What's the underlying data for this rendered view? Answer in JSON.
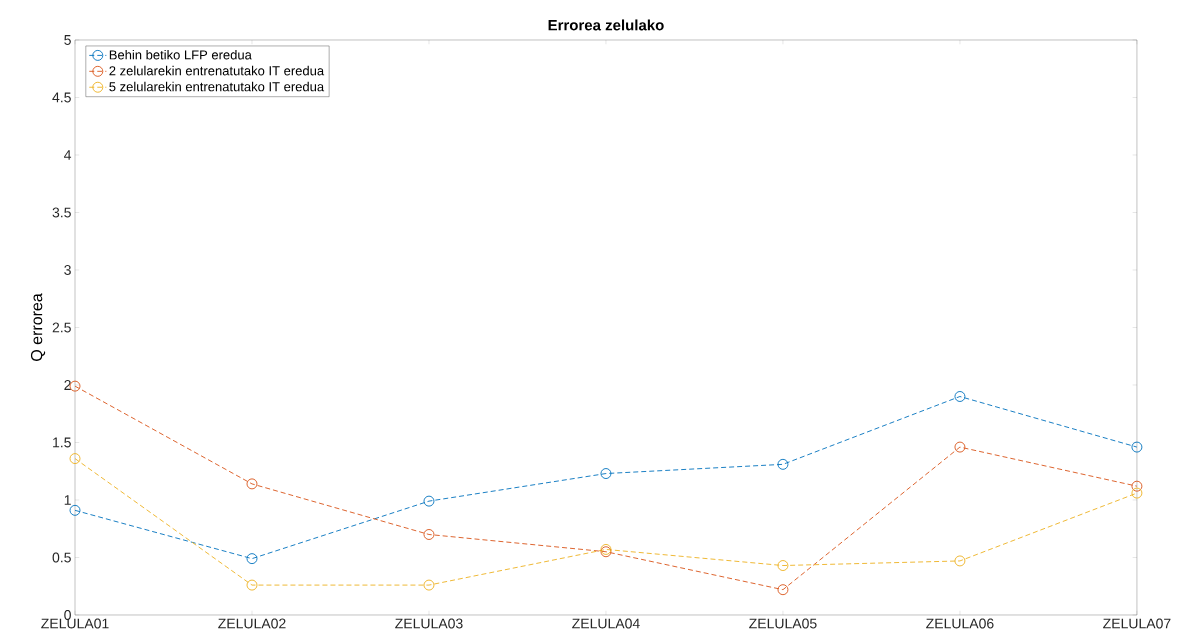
{
  "chart_data": {
    "type": "line",
    "title": "Errorea zelulako",
    "ylabel": "Q errorea",
    "categories": [
      "ZELULA01",
      "ZELULA02",
      "ZELULA03",
      "ZELULA04",
      "ZELULA05",
      "ZELULA06",
      "ZELULA07"
    ],
    "series": [
      {
        "name": "Behin betiko LFP eredua",
        "color": "#0072bd",
        "values": [
          0.91,
          0.49,
          0.99,
          1.23,
          1.31,
          1.9,
          1.46
        ]
      },
      {
        "name": "2 zelularekin entrenatutako IT eredua",
        "color": "#d95319",
        "values": [
          1.99,
          1.14,
          0.7,
          0.55,
          0.22,
          1.46,
          1.12
        ]
      },
      {
        "name": "5 zelularekin entrenatutako IT eredua",
        "color": "#edb120",
        "values": [
          1.36,
          0.26,
          0.26,
          0.57,
          0.43,
          0.47,
          1.06
        ]
      }
    ],
    "ylim": [
      0,
      5
    ],
    "yticks": [
      0,
      0.5,
      1,
      1.5,
      2,
      2.5,
      3,
      3.5,
      4,
      4.5,
      5
    ],
    "legend": "top left",
    "marker": "circle",
    "line_style": "dashed",
    "grid": false
  }
}
